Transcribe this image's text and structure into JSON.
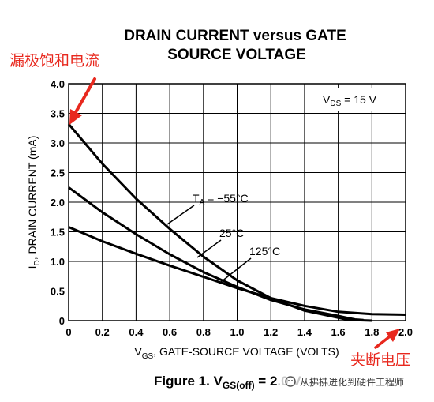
{
  "chart_data": {
    "type": "line",
    "title_line1": "DRAIN CURRENT versus GATE",
    "title_line2": "SOURCE VOLTAGE",
    "xlabel_main": "V",
    "xlabel_sub": "GS",
    "xlabel_rest": ", GATE-SOURCE VOLTAGE (VOLTS)",
    "ylabel_main": "I",
    "ylabel_sub": "D",
    "ylabel_rest": ", DRAIN CURRENT (mA)",
    "xlim": [
      0,
      2.0
    ],
    "ylim": [
      0,
      4.0
    ],
    "xticks": [
      "0",
      "0.2",
      "0.4",
      "0.6",
      "0.8",
      "1.0",
      "1.2",
      "1.4",
      "1.6",
      "1.8",
      "2.0"
    ],
    "yticks": [
      "0",
      "0.5",
      "1.0",
      "1.5",
      "2.0",
      "2.5",
      "3.0",
      "3.5",
      "4.0"
    ],
    "grid": true,
    "condition_main": "V",
    "condition_sub": "DS",
    "condition_rest": " = 15 V",
    "series": [
      {
        "name": "T_A = -55°C",
        "x": [
          0,
          0.2,
          0.4,
          0.6,
          0.8,
          1.0,
          1.2,
          1.4,
          1.6,
          1.65,
          1.7,
          1.8
        ],
        "y": [
          3.32,
          2.65,
          2.06,
          1.55,
          1.08,
          0.68,
          0.38,
          0.17,
          0.05,
          0.02,
          0.01,
          0
        ]
      },
      {
        "name": "25°C",
        "x": [
          0,
          0.2,
          0.4,
          0.6,
          0.8,
          1.0,
          1.2,
          1.4,
          1.6,
          1.65,
          1.7,
          1.75
        ],
        "y": [
          2.25,
          1.83,
          1.46,
          1.12,
          0.82,
          0.57,
          0.35,
          0.19,
          0.08,
          0.05,
          0.02,
          0.01
        ]
      },
      {
        "name": "125°C",
        "x": [
          0,
          0.2,
          0.4,
          0.6,
          0.8,
          1.0,
          1.2,
          1.4,
          1.6,
          1.7,
          1.8,
          2.0
        ],
        "y": [
          1.58,
          1.34,
          1.13,
          0.93,
          0.74,
          0.55,
          0.38,
          0.25,
          0.15,
          0.13,
          0.11,
          0.1
        ]
      }
    ],
    "curve_labels": {
      "ta_main": "T",
      "ta_sub": "A",
      "ta_rest": " = −55°C",
      "mid": "25°C",
      "hot": "125°C"
    }
  },
  "annotations": {
    "saturation_label": "漏极饱和电流",
    "cutoff_label": "夹断电压",
    "color": "#e8281e"
  },
  "caption": {
    "prefix": "Figure 1. V",
    "sub": "GS(off)",
    "rest": " = ",
    "obscured": "2.0 V"
  },
  "watermark": {
    "text": "从拂拂进化到硬件工程师"
  }
}
